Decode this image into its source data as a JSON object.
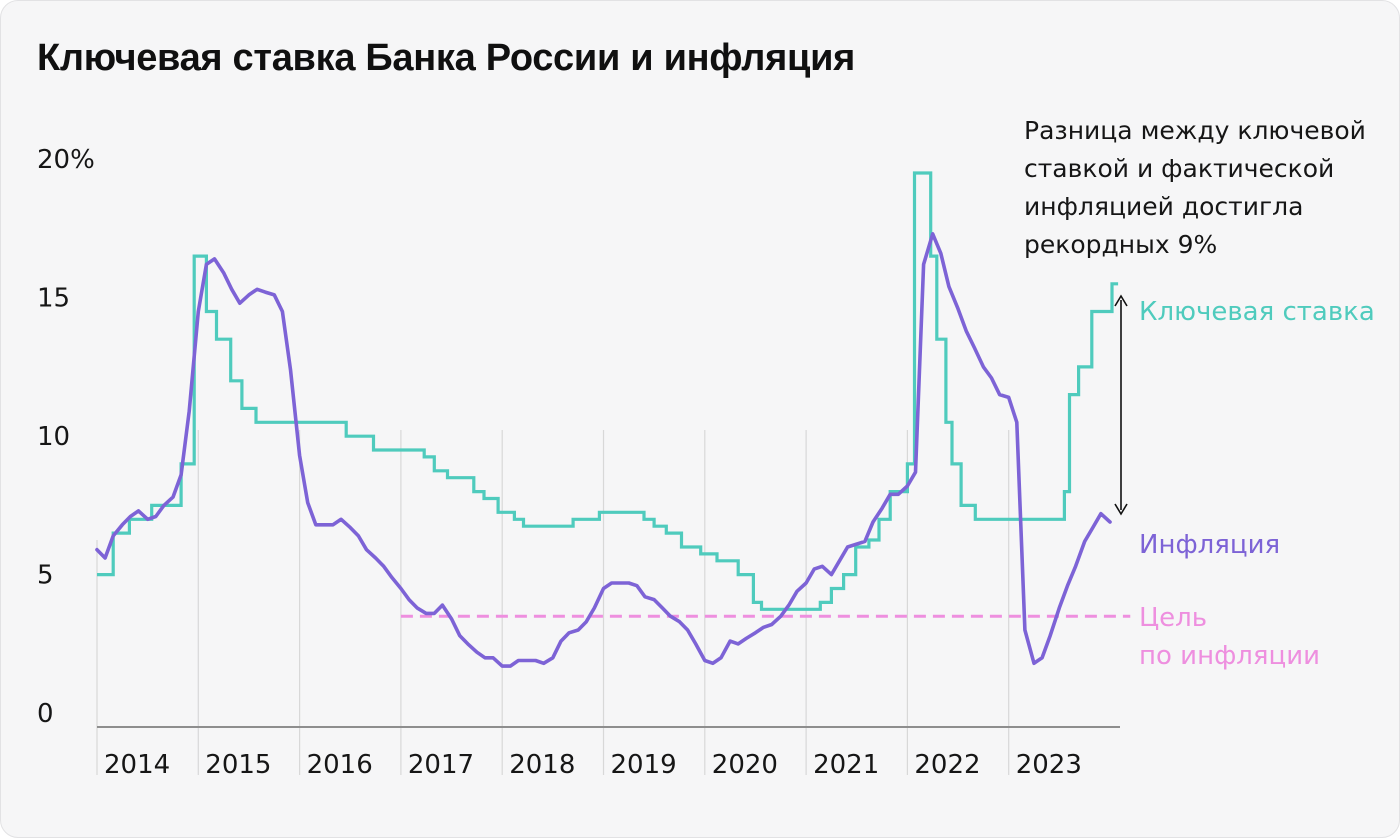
{
  "title": "Ключевая ставка Банка России и инфляция",
  "annotation": [
    "Разница между ключевой",
    "ставкой и фактической",
    "инфляцией достигла",
    "рекордных 9%"
  ],
  "target_label": [
    "Цель",
    "по инфляции"
  ],
  "colors": {
    "rate": "#4fcbbd",
    "inflation": "#7d63d6",
    "target": "#ee8fdf",
    "axis": "#8e8e8e",
    "grid": "#d8d8d8",
    "text": "#161616"
  },
  "chart_data": {
    "type": "line",
    "title": "Ключевая ставка Банка России и инфляция",
    "xlabel": "",
    "ylabel": "",
    "ylim": [
      0,
      20
    ],
    "yticks": [
      {
        "value": 0,
        "label": "0"
      },
      {
        "value": 5,
        "label": "5"
      },
      {
        "value": 10,
        "label": "10"
      },
      {
        "value": 15,
        "label": "15"
      },
      {
        "value": 20,
        "label": "20%"
      }
    ],
    "xlim": [
      2014,
      2024
    ],
    "xticks": [
      "2014",
      "2015",
      "2016",
      "2017",
      "2018",
      "2019",
      "2020",
      "2021",
      "2022",
      "2023"
    ],
    "grid": "vertical lines at year starts 2015–2023",
    "series": [
      {
        "name": "Ключевая ставка",
        "kind": "step",
        "points": [
          [
            2014.0,
            5.5
          ],
          [
            2014.16,
            7.0
          ],
          [
            2014.32,
            7.5
          ],
          [
            2014.54,
            8.0
          ],
          [
            2014.83,
            9.5
          ],
          [
            2014.96,
            17.0
          ],
          [
            2015.08,
            15.0
          ],
          [
            2015.18,
            14.0
          ],
          [
            2015.32,
            12.5
          ],
          [
            2015.43,
            11.5
          ],
          [
            2015.57,
            11.0
          ],
          [
            2016.46,
            10.5
          ],
          [
            2016.73,
            10.0
          ],
          [
            2017.23,
            9.75
          ],
          [
            2017.33,
            9.25
          ],
          [
            2017.46,
            9.0
          ],
          [
            2017.72,
            8.5
          ],
          [
            2017.82,
            8.25
          ],
          [
            2017.96,
            7.75
          ],
          [
            2018.12,
            7.5
          ],
          [
            2018.21,
            7.25
          ],
          [
            2018.7,
            7.5
          ],
          [
            2018.96,
            7.75
          ],
          [
            2019.4,
            7.5
          ],
          [
            2019.5,
            7.25
          ],
          [
            2019.62,
            7.0
          ],
          [
            2019.77,
            6.5
          ],
          [
            2019.96,
            6.25
          ],
          [
            2020.12,
            6.0
          ],
          [
            2020.33,
            5.5
          ],
          [
            2020.48,
            4.5
          ],
          [
            2020.56,
            4.25
          ],
          [
            2021.14,
            4.5
          ],
          [
            2021.25,
            5.0
          ],
          [
            2021.37,
            5.5
          ],
          [
            2021.49,
            6.5
          ],
          [
            2021.62,
            6.75
          ],
          [
            2021.72,
            7.5
          ],
          [
            2021.83,
            8.5
          ],
          [
            2022.0,
            9.5
          ],
          [
            2022.07,
            20.0
          ],
          [
            2022.23,
            17.0
          ],
          [
            2022.29,
            14.0
          ],
          [
            2022.38,
            11.0
          ],
          [
            2022.44,
            9.5
          ],
          [
            2022.53,
            8.0
          ],
          [
            2022.67,
            7.5
          ],
          [
            2023.55,
            8.5
          ],
          [
            2023.6,
            12.0
          ],
          [
            2023.69,
            13.0
          ],
          [
            2023.82,
            15.0
          ],
          [
            2024.02,
            16.0
          ],
          [
            2024.08,
            16.0
          ]
        ]
      },
      {
        "name": "Инфляция",
        "kind": "line",
        "points": [
          [
            2014.0,
            6.4
          ],
          [
            2014.08,
            6.1
          ],
          [
            2014.16,
            6.9
          ],
          [
            2014.25,
            7.3
          ],
          [
            2014.33,
            7.6
          ],
          [
            2014.41,
            7.8
          ],
          [
            2014.5,
            7.5
          ],
          [
            2014.58,
            7.6
          ],
          [
            2014.66,
            8.0
          ],
          [
            2014.75,
            8.3
          ],
          [
            2014.83,
            9.1
          ],
          [
            2014.91,
            11.4
          ],
          [
            2015.0,
            15.0
          ],
          [
            2015.08,
            16.7
          ],
          [
            2015.16,
            16.9
          ],
          [
            2015.25,
            16.4
          ],
          [
            2015.33,
            15.8
          ],
          [
            2015.41,
            15.3
          ],
          [
            2015.5,
            15.6
          ],
          [
            2015.58,
            15.8
          ],
          [
            2015.66,
            15.7
          ],
          [
            2015.75,
            15.6
          ],
          [
            2015.83,
            15.0
          ],
          [
            2015.91,
            12.9
          ],
          [
            2016.0,
            9.8
          ],
          [
            2016.08,
            8.1
          ],
          [
            2016.16,
            7.3
          ],
          [
            2016.33,
            7.3
          ],
          [
            2016.41,
            7.5
          ],
          [
            2016.5,
            7.2
          ],
          [
            2016.58,
            6.9
          ],
          [
            2016.66,
            6.4
          ],
          [
            2016.75,
            6.1
          ],
          [
            2016.83,
            5.8
          ],
          [
            2016.91,
            5.4
          ],
          [
            2017.0,
            5.0
          ],
          [
            2017.08,
            4.6
          ],
          [
            2017.16,
            4.3
          ],
          [
            2017.25,
            4.1
          ],
          [
            2017.33,
            4.1
          ],
          [
            2017.41,
            4.4
          ],
          [
            2017.5,
            3.9
          ],
          [
            2017.58,
            3.3
          ],
          [
            2017.66,
            3.0
          ],
          [
            2017.75,
            2.7
          ],
          [
            2017.83,
            2.5
          ],
          [
            2017.91,
            2.5
          ],
          [
            2018.0,
            2.2
          ],
          [
            2018.08,
            2.2
          ],
          [
            2018.16,
            2.4
          ],
          [
            2018.33,
            2.4
          ],
          [
            2018.41,
            2.3
          ],
          [
            2018.5,
            2.5
          ],
          [
            2018.58,
            3.1
          ],
          [
            2018.66,
            3.4
          ],
          [
            2018.75,
            3.5
          ],
          [
            2018.83,
            3.8
          ],
          [
            2018.91,
            4.3
          ],
          [
            2019.0,
            5.0
          ],
          [
            2019.08,
            5.2
          ],
          [
            2019.25,
            5.2
          ],
          [
            2019.33,
            5.1
          ],
          [
            2019.41,
            4.7
          ],
          [
            2019.5,
            4.6
          ],
          [
            2019.58,
            4.3
          ],
          [
            2019.66,
            4.0
          ],
          [
            2019.75,
            3.8
          ],
          [
            2019.83,
            3.5
          ],
          [
            2019.91,
            3.0
          ],
          [
            2020.0,
            2.4
          ],
          [
            2020.08,
            2.3
          ],
          [
            2020.16,
            2.5
          ],
          [
            2020.25,
            3.1
          ],
          [
            2020.33,
            3.0
          ],
          [
            2020.41,
            3.2
          ],
          [
            2020.5,
            3.4
          ],
          [
            2020.58,
            3.6
          ],
          [
            2020.66,
            3.7
          ],
          [
            2020.75,
            4.0
          ],
          [
            2020.83,
            4.4
          ],
          [
            2020.91,
            4.9
          ],
          [
            2021.0,
            5.2
          ],
          [
            2021.08,
            5.7
          ],
          [
            2021.16,
            5.8
          ],
          [
            2021.25,
            5.5
          ],
          [
            2021.33,
            6.0
          ],
          [
            2021.41,
            6.5
          ],
          [
            2021.58,
            6.7
          ],
          [
            2021.66,
            7.4
          ],
          [
            2021.75,
            7.9
          ],
          [
            2021.83,
            8.4
          ],
          [
            2021.91,
            8.4
          ],
          [
            2022.0,
            8.7
          ],
          [
            2022.08,
            9.2
          ],
          [
            2022.16,
            16.7
          ],
          [
            2022.25,
            17.8
          ],
          [
            2022.33,
            17.1
          ],
          [
            2022.41,
            15.9
          ],
          [
            2022.5,
            15.1
          ],
          [
            2022.58,
            14.3
          ],
          [
            2022.66,
            13.7
          ],
          [
            2022.75,
            13.0
          ],
          [
            2022.83,
            12.6
          ],
          [
            2022.91,
            12.0
          ],
          [
            2023.0,
            11.9
          ],
          [
            2023.08,
            11.0
          ],
          [
            2023.16,
            3.5
          ],
          [
            2023.25,
            2.3
          ],
          [
            2023.33,
            2.5
          ],
          [
            2023.41,
            3.3
          ],
          [
            2023.5,
            4.3
          ],
          [
            2023.58,
            5.1
          ],
          [
            2023.66,
            5.8
          ],
          [
            2023.75,
            6.7
          ],
          [
            2023.83,
            7.2
          ],
          [
            2023.91,
            7.7
          ],
          [
            2024.0,
            7.4
          ]
        ]
      },
      {
        "name": "Цель по инфляции",
        "kind": "constant",
        "value": 4,
        "from": 2017,
        "to": 2024.2
      }
    ]
  }
}
